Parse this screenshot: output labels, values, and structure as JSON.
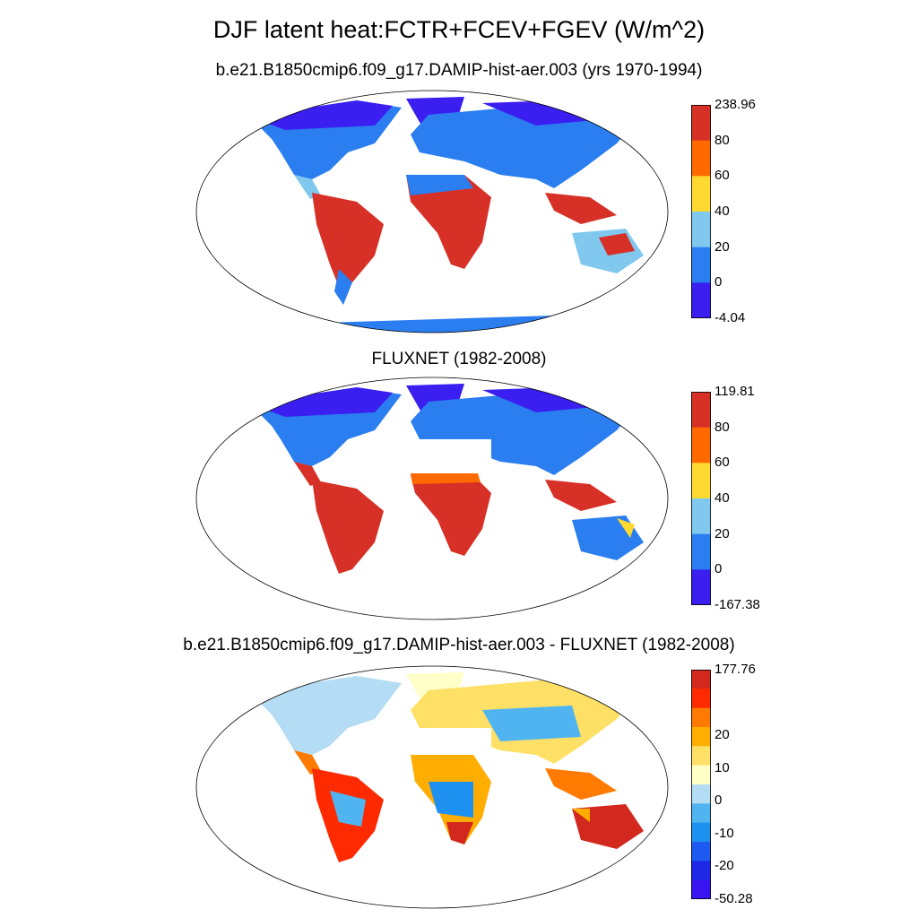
{
  "title": "DJF latent heat:FCTR+FCEV+FGEV (W/m^2)",
  "panels": [
    {
      "id": "model",
      "title": "b.e21.B1850cmip6.f09_g17.DAMIP-hist-aer.003 (yrs 1970-1994)",
      "colorbar": {
        "labels": [
          "238.96",
          "80",
          "60",
          "40",
          "20",
          "0",
          "-4.04"
        ],
        "colors": [
          "#d73027",
          "#ff6a00",
          "#ffd92f",
          "#80c8ee",
          "#2b7ef0",
          "#3a1ff0"
        ]
      }
    },
    {
      "id": "obs",
      "title": "FLUXNET (1982-2008)",
      "colorbar": {
        "labels": [
          "119.81",
          "80",
          "60",
          "40",
          "20",
          "0",
          "-167.38"
        ],
        "colors": [
          "#d73027",
          "#ff6a00",
          "#ffd92f",
          "#80c8ee",
          "#2b7ef0",
          "#3a1ff0"
        ]
      }
    },
    {
      "id": "diff",
      "title": "b.e21.B1850cmip6.f09_g17.DAMIP-hist-aer.003 - FLUXNET (1982-2008)",
      "colorbar": {
        "labels": [
          "177.76",
          "",
          "20",
          "10",
          "0",
          "-10",
          "-20",
          "-50.28"
        ],
        "colors": [
          "#d2281e",
          "#ff2a00",
          "#ff7a00",
          "#ffae00",
          "#ffe066",
          "#ffffc8",
          "#b4dcf4",
          "#4fb4f0",
          "#1e90f0",
          "#1e5af0",
          "#1f28e6",
          "#3a14f0"
        ]
      }
    }
  ]
}
